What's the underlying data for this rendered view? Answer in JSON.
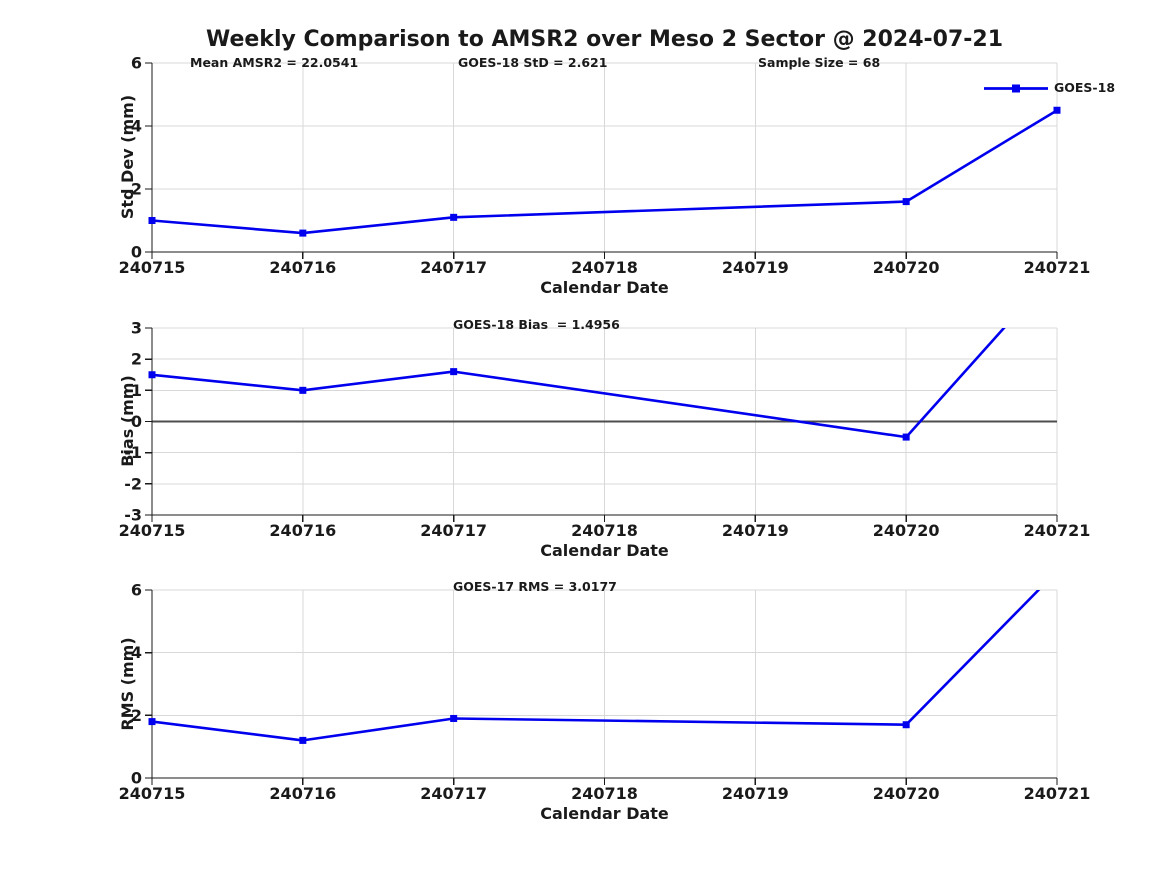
{
  "figure": {
    "title": "Weekly Comparison to AMSR2 over Meso 2 Sector @ 2024-07-21",
    "colors": {
      "background": "#ffffff",
      "line": "#0000ee",
      "marker": "#0000ee",
      "grid": "#d8d8d8",
      "axis": "#1a1a1a",
      "text": "#1a1a1a",
      "zero_line": "#4d4d4d"
    }
  },
  "chart_data": [
    {
      "type": "line",
      "id": "std-dev-panel",
      "title": "",
      "xlabel": "Calendar Date",
      "ylabel": "Std Dev (mm)",
      "ylim": [
        0,
        6
      ],
      "yticks": [
        0,
        2,
        4,
        6
      ],
      "xticks": [
        240715,
        240716,
        240717,
        240718,
        240719,
        240720,
        240721
      ],
      "grid": true,
      "zero_line": false,
      "legend": {
        "label": "GOES-18",
        "position": "top-right"
      },
      "series": [
        {
          "name": "GOES-18",
          "x": [
            240715,
            240716,
            240717,
            240720,
            240721
          ],
          "values": [
            1.0,
            0.6,
            1.1,
            1.6,
            4.5
          ]
        }
      ],
      "annotations": [
        {
          "text": "Mean AMSR2 = 22.0541"
        },
        {
          "text": "GOES-18 StD = 2.621"
        },
        {
          "text": "Sample Size = 68"
        }
      ]
    },
    {
      "type": "line",
      "id": "bias-panel",
      "title": "",
      "xlabel": "Calendar Date",
      "ylabel": "Bias (mm)",
      "ylim": [
        -3,
        3
      ],
      "yticks": [
        -3,
        -2,
        -1,
        0,
        1,
        2,
        3
      ],
      "xticks": [
        240715,
        240716,
        240717,
        240718,
        240719,
        240720,
        240721
      ],
      "grid": true,
      "zero_line": true,
      "legend": null,
      "series": [
        {
          "name": "GOES-18",
          "x": [
            240715,
            240716,
            240717,
            240720,
            240721
          ],
          "values": [
            1.5,
            1.0,
            1.6,
            -0.5,
            4.9
          ],
          "note": "last point exceeds axis top and line is clipped at y=3"
        }
      ],
      "annotations": [
        {
          "text": "GOES-18 Bias  = 1.4956"
        }
      ]
    },
    {
      "type": "line",
      "id": "rms-panel",
      "title": "",
      "xlabel": "Calendar Date",
      "ylabel": "RMS (mm)",
      "ylim": [
        0,
        6
      ],
      "yticks": [
        0,
        2,
        4,
        6
      ],
      "xticks": [
        240715,
        240716,
        240717,
        240718,
        240719,
        240720,
        240721
      ],
      "grid": true,
      "zero_line": false,
      "legend": null,
      "series": [
        {
          "name": "GOES-18",
          "x": [
            240715,
            240716,
            240717,
            240720,
            240721
          ],
          "values": [
            1.8,
            1.2,
            1.9,
            1.7,
            6.6
          ],
          "note": "last point exceeds axis top and line is clipped at y=6"
        }
      ],
      "annotations": [
        {
          "text": "GOES-17 RMS = 3.0177"
        }
      ]
    }
  ]
}
